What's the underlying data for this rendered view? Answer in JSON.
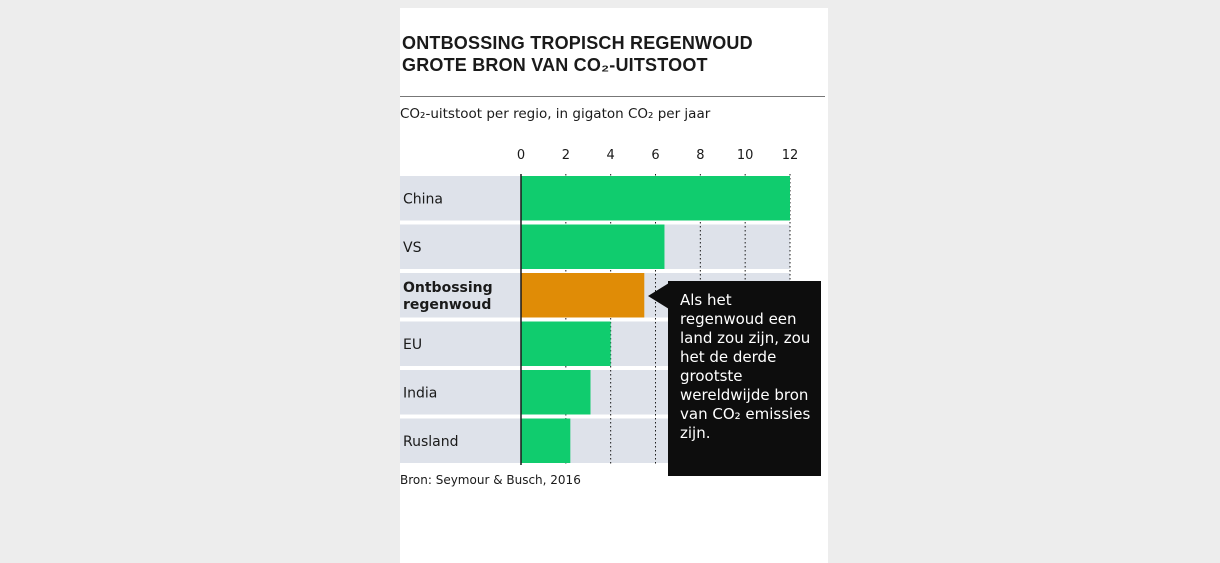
{
  "title_line1": "ONTBOSSING TROPISCH REGENWOUD",
  "title_line2": "GROTE BRON VAN CO₂-UITSTOOT",
  "subtitle": "CO₂-uitstoot per regio, in gigaton CO₂ per jaar",
  "callout": "Als het regenwoud een land zou zijn, zou het de derde grootste wereldwijde bron van CO₂ emissies zijn.",
  "source": "Bron: Seymour & Busch, 2016",
  "colors": {
    "bar": "#10cc6e",
    "highlight": "#e08c06",
    "row_background": "#dee2ea",
    "axis": "#1a1a1a",
    "callout_background": "#0d0d0d"
  },
  "chart_data": {
    "type": "bar",
    "orientation": "horizontal",
    "categories": [
      "China",
      "VS",
      "Ontbossing regenwoud",
      "EU",
      "India",
      "Rusland"
    ],
    "values": [
      12,
      6.4,
      5.5,
      4,
      3.1,
      2.2
    ],
    "highlight_category": "Ontbossing regenwoud",
    "xlim": [
      0,
      12
    ],
    "xticks": [
      0,
      2,
      4,
      6,
      8,
      10,
      12
    ],
    "xticks_position": "top",
    "grid": "vertical-dotted",
    "legend": "none"
  }
}
